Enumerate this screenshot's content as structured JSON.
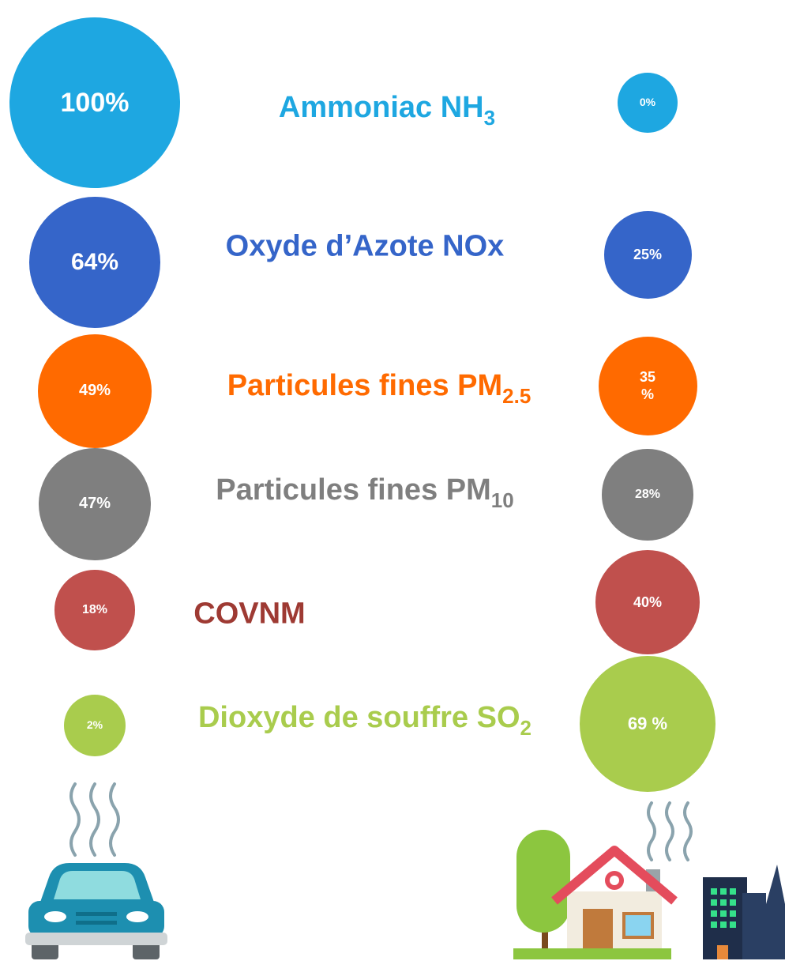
{
  "rows": [
    {
      "name": "Ammoniac NH",
      "sub": "3",
      "color": "#1ea7e1",
      "title_color": "#1ea7e1",
      "left": {
        "value": 100,
        "label": "100%"
      },
      "right": {
        "value": 0,
        "label": "0%"
      }
    },
    {
      "name": "Oxyde d’Azote NOx",
      "sub": null,
      "color": "#3565c9",
      "title_color": "#3565c9",
      "left": {
        "value": 64,
        "label": "64%"
      },
      "right": {
        "value": 25,
        "label": "25%"
      }
    },
    {
      "name": "Particules fines PM",
      "sub": "2.5",
      "color": "#ff6a00",
      "title_color": "#ff6a00",
      "left": {
        "value": 49,
        "label": "49%"
      },
      "right": {
        "value": 35,
        "label": "35\n%"
      }
    },
    {
      "name": "Particules fines PM",
      "sub": "10",
      "color": "#7f7f7f",
      "title_color": "#7f7f7f",
      "left": {
        "value": 47,
        "label": "47%"
      },
      "right": {
        "value": 28,
        "label": "28%"
      }
    },
    {
      "name": "COVNM",
      "sub": null,
      "color": "#c0504d",
      "title_color": "#9e3a33",
      "left": {
        "value": 18,
        "label": "18%"
      },
      "right": {
        "value": 40,
        "label": "40%"
      }
    },
    {
      "name": "Dioxyde de souffre SO",
      "sub": "2",
      "color": "#a9cc4d",
      "title_color": "#a9cc4d",
      "left": {
        "value": 2,
        "label": "2%"
      },
      "right": {
        "value": 69,
        "label": "69 %"
      }
    }
  ]
}
